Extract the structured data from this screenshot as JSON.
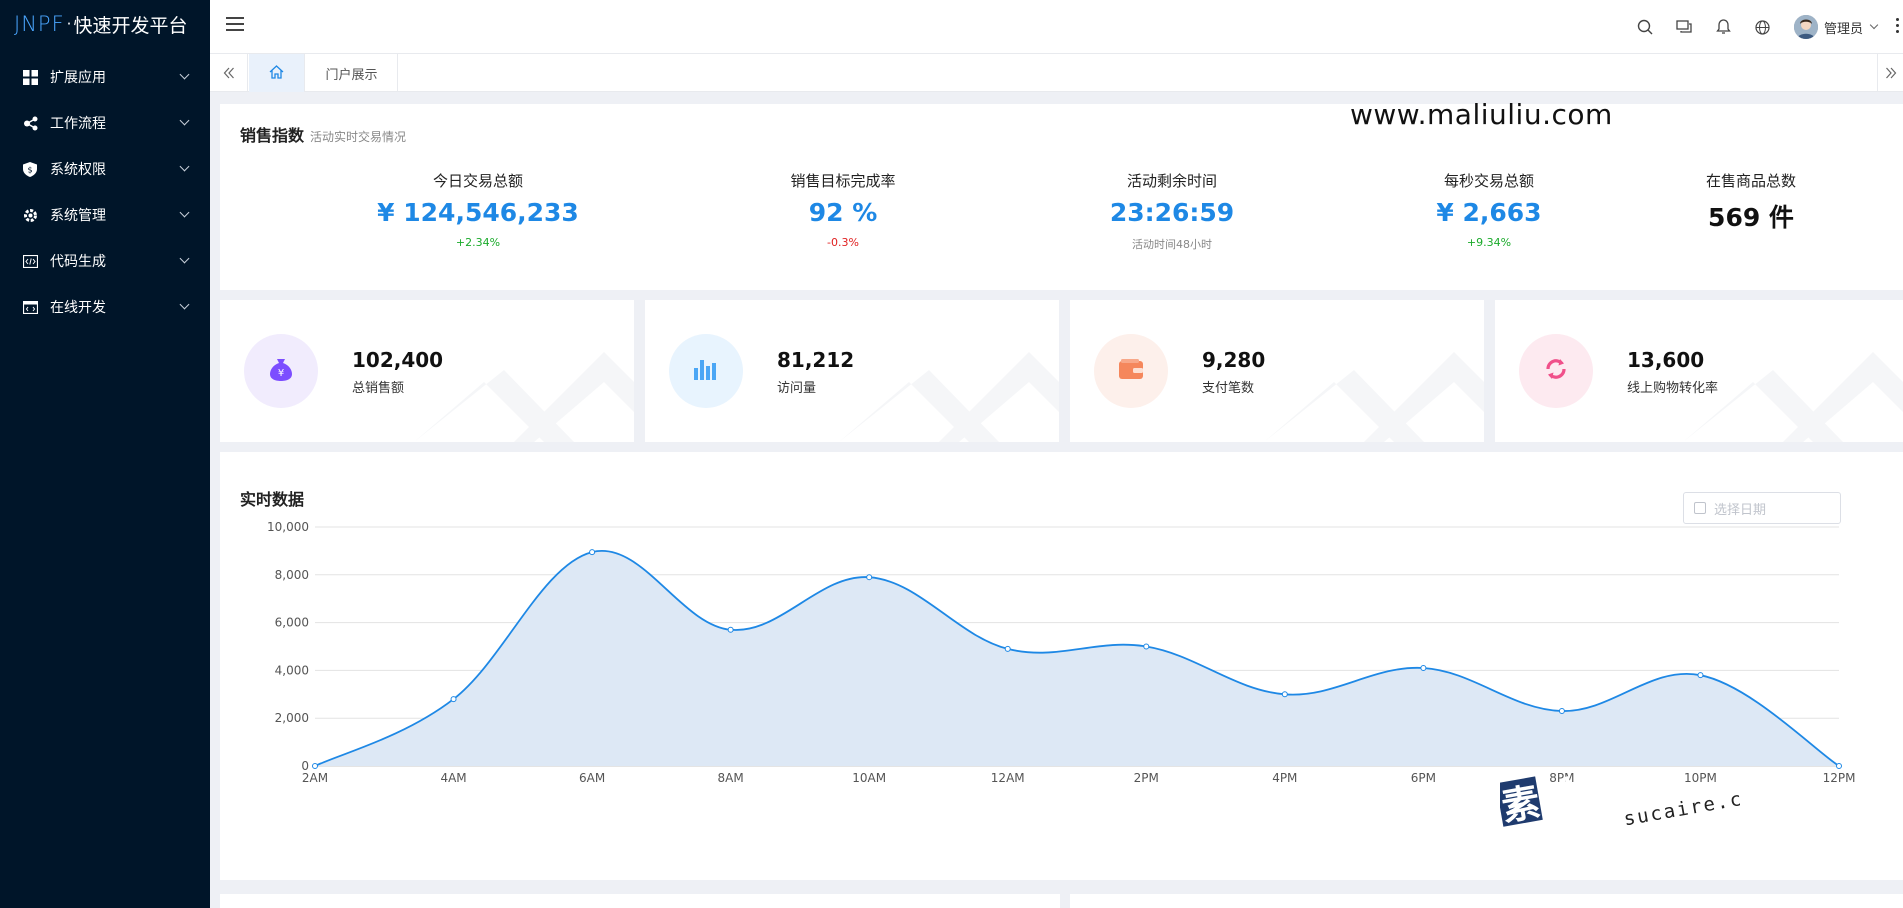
{
  "app": {
    "logo_brand": "JNPF",
    "logo_dot": "·",
    "logo_name": "快速开发平台"
  },
  "sidebar": {
    "items": [
      {
        "label": "扩展应用",
        "icon": "grid-icon"
      },
      {
        "label": "工作流程",
        "icon": "share-icon"
      },
      {
        "label": "系统权限",
        "icon": "shield-icon"
      },
      {
        "label": "系统管理",
        "icon": "gear-icon"
      },
      {
        "label": "代码生成",
        "icon": "code-icon"
      },
      {
        "label": "在线开发",
        "icon": "code-window-icon"
      }
    ]
  },
  "header": {
    "user_name": "管理员"
  },
  "tabs": {
    "home_icon": "home-icon",
    "portal_label": "门户展示"
  },
  "watermark": {
    "url": "www.maliuliu.com",
    "stamp_cn": "素材熱",
    "stamp_en": "sucaire.com"
  },
  "sales": {
    "title": "销售指数",
    "subtitle": "活动实时交易情况",
    "kpis": [
      {
        "label": "今日交易总额",
        "value": "¥ 124,546,233",
        "note": "+2.34%"
      },
      {
        "label": "销售目标完成率",
        "value": "92 %",
        "note": "-0.3%"
      },
      {
        "label": "活动剩余时间",
        "value": "23:26:59",
        "note": "活动时间48小时"
      },
      {
        "label": "每秒交易总额",
        "value": "¥ 2,663",
        "note": "+9.34%"
      },
      {
        "label": "在售商品总数",
        "value": "569 件",
        "note": ""
      }
    ]
  },
  "stats": [
    {
      "value": "102,400",
      "label": "总销售额",
      "icon": "money-bag-icon",
      "color": "#7c4dff",
      "bg": "#f1ecfd"
    },
    {
      "value": "81,212",
      "label": "访问量",
      "icon": "bar-chart-icon",
      "color": "#1e90ff",
      "bg": "#e8f4fe"
    },
    {
      "value": "9,280",
      "label": "支付笔数",
      "icon": "wallet-icon",
      "color": "#f5875c",
      "bg": "#fdf0eb"
    },
    {
      "value": "13,600",
      "label": "线上购物转化率",
      "icon": "refresh-icon",
      "color": "#f0508a",
      "bg": "#fdeaf0"
    }
  ],
  "realtime": {
    "title": "实时数据",
    "date_placeholder": "选择日期"
  },
  "chart_data": {
    "type": "area",
    "title": "实时数据",
    "categories": [
      "2AM",
      "4AM",
      "6AM",
      "8AM",
      "10AM",
      "12AM",
      "2PM",
      "4PM",
      "6PM",
      "8PM",
      "10PM",
      "12PM"
    ],
    "series": [
      {
        "values": [
          0,
          2800,
          8950,
          5700,
          7900,
          4900,
          5000,
          3000,
          4100,
          2300,
          3800,
          0
        ],
        "color": "#1e88e5",
        "fill": "#dde8f5"
      }
    ],
    "ylim": [
      0,
      10000
    ],
    "yticks": [
      "0",
      "2,000",
      "4,000",
      "6,000",
      "8,000",
      "10,000"
    ],
    "grid": true
  }
}
